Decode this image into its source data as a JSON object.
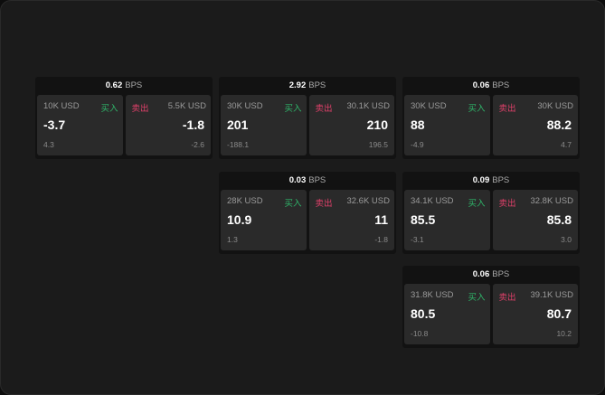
{
  "unit": "BPS",
  "buy_label": "买入",
  "sell_label": "卖出",
  "colors": {
    "buy": "#2fb56a",
    "sell": "#e0406a"
  },
  "cards": [
    {
      "bps": "0.62",
      "bid": {
        "size": "10K USD",
        "price": "-3.7",
        "change": "4.3"
      },
      "ask": {
        "size": "5.5K USD",
        "price": "-1.8",
        "change": "-2.6"
      }
    },
    {
      "bps": "2.92",
      "bid": {
        "size": "30K USD",
        "price": "201",
        "change": "-188.1"
      },
      "ask": {
        "size": "30.1K USD",
        "price": "210",
        "change": "196.5"
      }
    },
    {
      "bps": "0.06",
      "bid": {
        "size": "30K USD",
        "price": "88",
        "change": "-4.9"
      },
      "ask": {
        "size": "30K USD",
        "price": "88.2",
        "change": "4.7"
      }
    },
    {
      "bps": "0.03",
      "bid": {
        "size": "28K USD",
        "price": "10.9",
        "change": "1.3"
      },
      "ask": {
        "size": "32.6K USD",
        "price": "11",
        "change": "-1.8"
      }
    },
    {
      "bps": "0.09",
      "bid": {
        "size": "34.1K USD",
        "price": "85.5",
        "change": "-3.1"
      },
      "ask": {
        "size": "32.8K USD",
        "price": "85.8",
        "change": "3.0"
      }
    },
    {
      "bps": "0.06",
      "bid": {
        "size": "31.8K USD",
        "price": "80.5",
        "change": "-10.8"
      },
      "ask": {
        "size": "39.1K USD",
        "price": "80.7",
        "change": "10.2"
      }
    }
  ]
}
